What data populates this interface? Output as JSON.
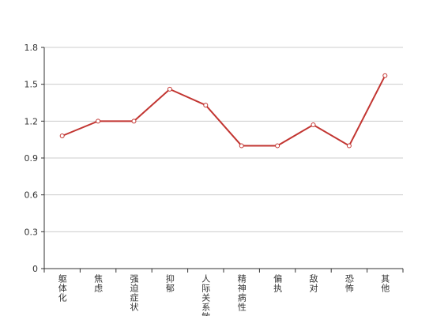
{
  "chart_data": {
    "type": "line",
    "categories": [
      "躯体化",
      "焦虑",
      "强迫症状",
      "抑郁",
      "人际关系敏感",
      "精神病性",
      "偏执",
      "敌对",
      "恐怖",
      "其他"
    ],
    "values": [
      1.08,
      1.2,
      1.2,
      1.46,
      1.33,
      1.0,
      1.0,
      1.17,
      1.0,
      1.57
    ],
    "color": "#c23531",
    "ylim": [
      0,
      1.8
    ],
    "yticks": [
      0,
      0.3,
      0.6,
      0.9,
      1.2,
      1.5,
      1.8
    ],
    "grid": true
  }
}
